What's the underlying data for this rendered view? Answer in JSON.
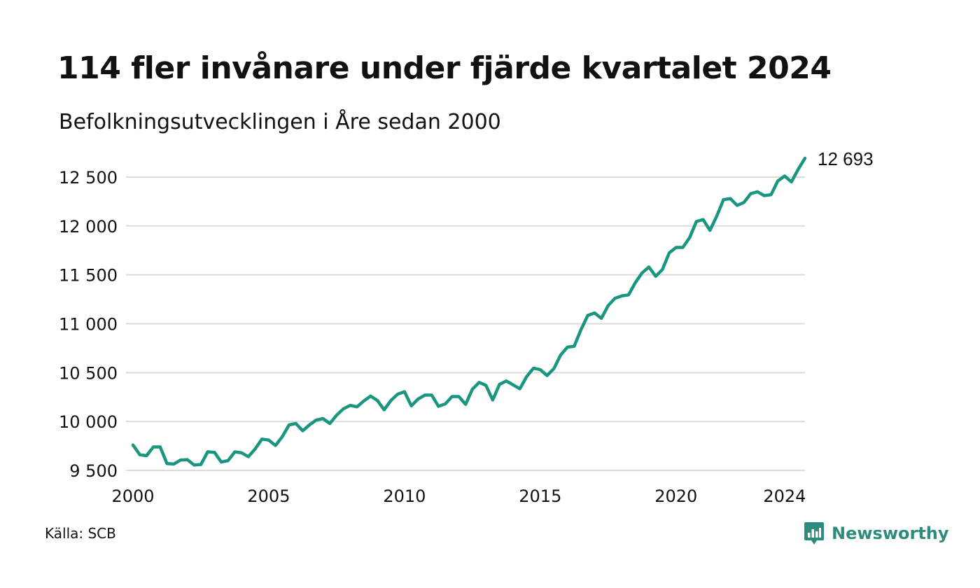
{
  "header": {
    "title": "114 fler invånare under fjärde kvartalet 2024",
    "subtitle": "Befolkningsutvecklingen i Åre sedan 2000"
  },
  "footer": {
    "source": "Källa: SCB",
    "brand": "Newsworthy",
    "brand_icon": "newsworthy-logo-icon"
  },
  "colors": {
    "line": "#1a9580",
    "grid": "#dcdcdc",
    "text": "#111111",
    "brand": "#2e8c7e"
  },
  "chart_data": {
    "type": "line",
    "title": "114 fler invånare under fjärde kvartalet 2024",
    "subtitle": "Befolkningsutvecklingen i Åre sedan 2000",
    "xlabel": "",
    "ylabel": "",
    "xlim": [
      2000,
      2024.75
    ],
    "ylim": [
      9500,
      12700
    ],
    "yticks": [
      9500,
      10000,
      10500,
      11000,
      11500,
      12000,
      12500
    ],
    "ytick_labels": [
      "9 500",
      "10 000",
      "10 500",
      "11 000",
      "11 500",
      "12 000",
      "12 500"
    ],
    "xticks": [
      2000,
      2005,
      2010,
      2015,
      2020,
      2024
    ],
    "xtick_labels": [
      "2000",
      "2005",
      "2010",
      "2015",
      "2020",
      "2024"
    ],
    "grid": true,
    "legend": "none",
    "end_label": "12 693",
    "series": [
      {
        "name": "",
        "x": [
          2000,
          2000.25,
          2000.5,
          2000.75,
          2001,
          2001.25,
          2001.5,
          2001.75,
          2002,
          2002.25,
          2002.5,
          2002.75,
          2003,
          2003.25,
          2003.5,
          2003.75,
          2004,
          2004.25,
          2004.5,
          2004.75,
          2005,
          2005.25,
          2005.5,
          2005.75,
          2006,
          2006.25,
          2006.5,
          2006.75,
          2007,
          2007.25,
          2007.5,
          2007.75,
          2008,
          2008.25,
          2008.5,
          2008.75,
          2009,
          2009.25,
          2009.5,
          2009.75,
          2010,
          2010.25,
          2010.5,
          2010.75,
          2011,
          2011.25,
          2011.5,
          2011.75,
          2012,
          2012.25,
          2012.5,
          2012.75,
          2013,
          2013.25,
          2013.5,
          2013.75,
          2014,
          2014.25,
          2014.5,
          2014.75,
          2015,
          2015.25,
          2015.5,
          2015.75,
          2016,
          2016.25,
          2016.5,
          2016.75,
          2017,
          2017.25,
          2017.5,
          2017.75,
          2018,
          2018.25,
          2018.5,
          2018.75,
          2019,
          2019.25,
          2019.5,
          2019.75,
          2020,
          2020.25,
          2020.5,
          2020.75,
          2021,
          2021.25,
          2021.5,
          2021.75,
          2022,
          2022.25,
          2022.5,
          2022.75,
          2023,
          2023.25,
          2023.5,
          2023.75,
          2024,
          2024.25,
          2024.5,
          2024.75
        ],
        "values": [
          9760,
          9660,
          9650,
          9740,
          9740,
          9570,
          9565,
          9605,
          9610,
          9555,
          9560,
          9690,
          9685,
          9585,
          9600,
          9690,
          9680,
          9640,
          9720,
          9820,
          9810,
          9755,
          9845,
          9965,
          9980,
          9905,
          9965,
          10015,
          10030,
          9980,
          10065,
          10130,
          10165,
          10150,
          10210,
          10260,
          10215,
          10120,
          10215,
          10280,
          10305,
          10160,
          10230,
          10270,
          10270,
          10155,
          10180,
          10255,
          10255,
          10175,
          10330,
          10400,
          10370,
          10220,
          10380,
          10415,
          10375,
          10335,
          10460,
          10545,
          10530,
          10470,
          10540,
          10680,
          10760,
          10770,
          10940,
          11085,
          11110,
          11055,
          11185,
          11260,
          11285,
          11295,
          11420,
          11520,
          11580,
          11485,
          11555,
          11725,
          11780,
          11780,
          11880,
          12045,
          12065,
          11955,
          12100,
          12270,
          12280,
          12210,
          12240,
          12330,
          12350,
          12310,
          12320,
          12460,
          12510,
          12450,
          12580,
          12693
        ]
      }
    ]
  }
}
